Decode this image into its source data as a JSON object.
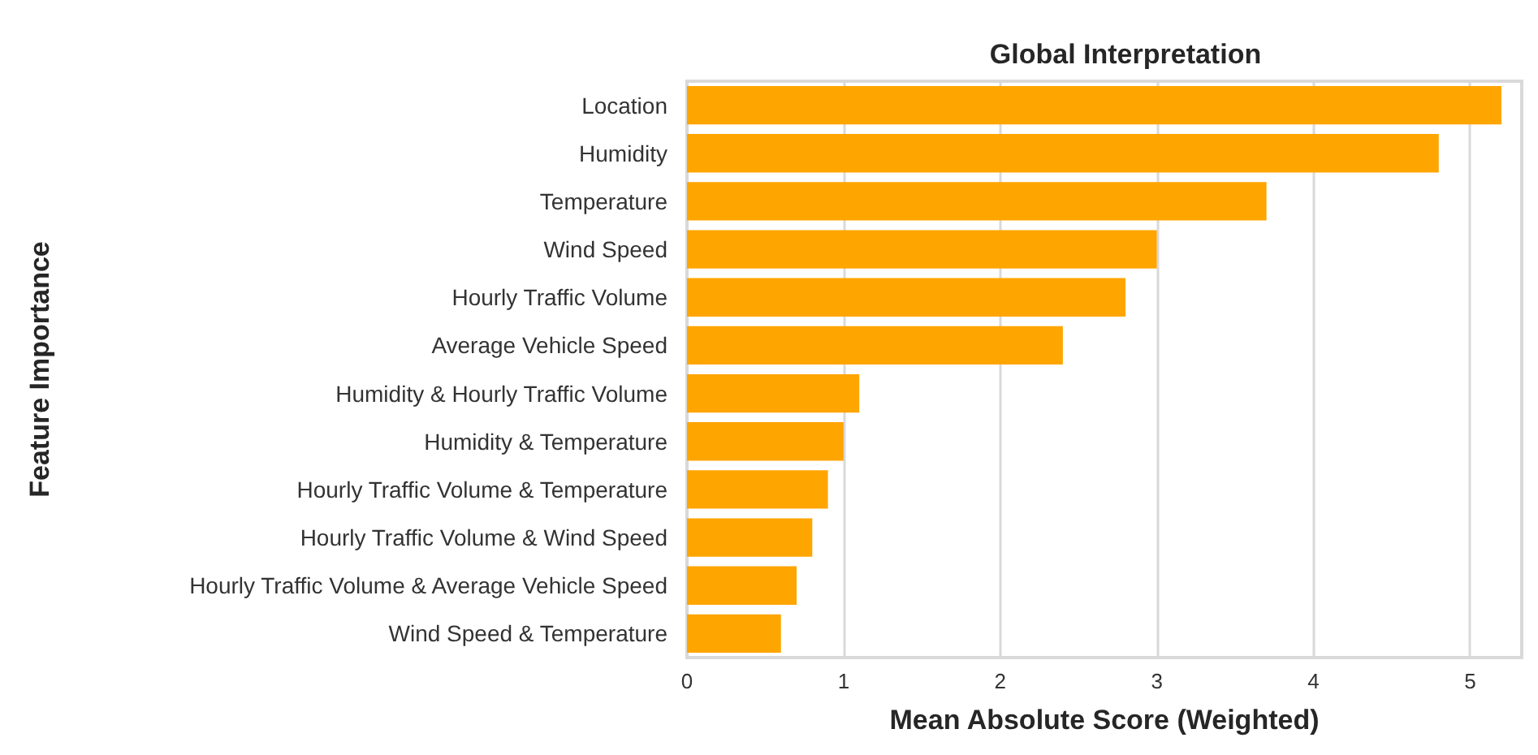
{
  "chart_data": {
    "type": "bar",
    "orientation": "horizontal",
    "title": "Global Interpretation",
    "xlabel": "Mean Absolute Score (Weighted)",
    "ylabel": "Feature Importance",
    "categories": [
      "Location",
      "Humidity",
      "Temperature",
      "Wind Speed",
      "Hourly Traffic Volume",
      "Average Vehicle Speed",
      "Humidity & Hourly Traffic Volume",
      "Humidity & Temperature",
      "Hourly Traffic Volume & Temperature",
      "Hourly Traffic Volume & Wind Speed",
      "Hourly Traffic Volume & Average Vehicle Speed",
      "Wind Speed & Temperature"
    ],
    "values": [
      5.2,
      4.8,
      3.7,
      3.0,
      2.8,
      2.4,
      1.1,
      1.0,
      0.9,
      0.8,
      0.7,
      0.6
    ],
    "color": "#ffa500",
    "xlim": [
      0,
      5.33
    ],
    "xticks": [
      0,
      1,
      2,
      3,
      4,
      5
    ],
    "grid": "x"
  }
}
